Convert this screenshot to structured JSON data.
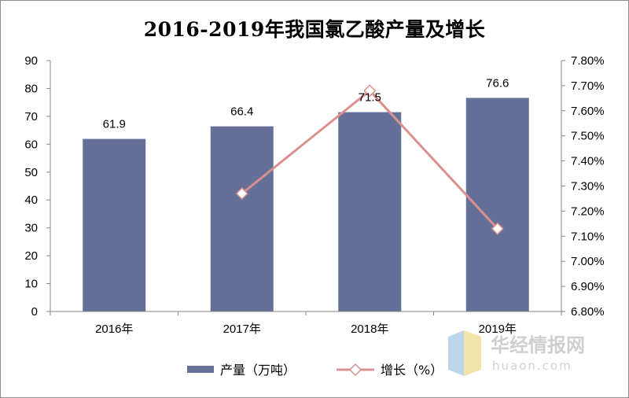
{
  "chart_data": {
    "type": "bar",
    "title": "2016-2019年我国氯乙酸产量及增长",
    "categories": [
      "2016年",
      "2017年",
      "2018年",
      "2019年"
    ],
    "series": [
      {
        "name": "产量（万吨）",
        "type": "bar",
        "axis": "left",
        "color": "#657099",
        "values": [
          61.9,
          66.4,
          71.5,
          76.6
        ],
        "value_labels": [
          "61.9",
          "66.4",
          "71.5",
          "76.6"
        ]
      },
      {
        "name": "增长（%）",
        "type": "line",
        "axis": "right",
        "color": "#d9908f",
        "values": [
          null,
          7.27,
          7.68,
          7.13
        ]
      }
    ],
    "left_axis": {
      "ylim": [
        0,
        90
      ],
      "ticks": [
        0,
        10,
        20,
        30,
        40,
        50,
        60,
        70,
        80,
        90
      ],
      "tick_labels": [
        "0",
        "10",
        "20",
        "30",
        "40",
        "50",
        "60",
        "70",
        "80",
        "90"
      ]
    },
    "right_axis": {
      "ylim": [
        6.8,
        7.8
      ],
      "ticks": [
        6.8,
        6.9,
        7.0,
        7.1,
        7.2,
        7.3,
        7.4,
        7.5,
        7.6,
        7.7,
        7.8
      ],
      "tick_labels": [
        "6.80%",
        "6.90%",
        "7.00%",
        "7.10%",
        "7.20%",
        "7.30%",
        "7.40%",
        "7.50%",
        "7.60%",
        "7.70%",
        "7.80%"
      ]
    },
    "grid": false,
    "legend_position": "bottom"
  },
  "legend": {
    "bar_label": "产量（万吨）",
    "line_label": "增长（%）"
  },
  "watermark": {
    "brand_cn": "华经情报网",
    "brand_en": "huaon.com"
  }
}
